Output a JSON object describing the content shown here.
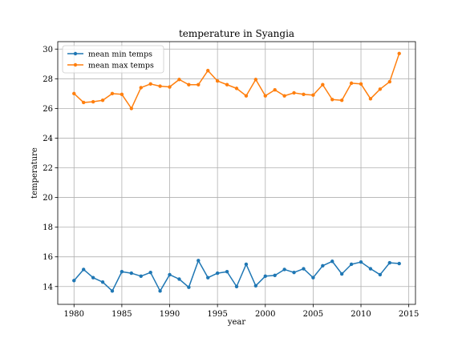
{
  "chart_data": {
    "type": "line",
    "title": "temperature in Syangia",
    "xlabel": "year",
    "ylabel": "temperature",
    "xlim": [
      1978.3,
      2015.7
    ],
    "ylim": [
      12.8,
      30.5
    ],
    "xticks": [
      1980,
      1985,
      1990,
      1995,
      2000,
      2005,
      2010,
      2015
    ],
    "yticks": [
      14,
      16,
      18,
      20,
      22,
      24,
      26,
      28,
      30
    ],
    "grid": true,
    "legend_position": "upper left",
    "x": [
      1980,
      1981,
      1982,
      1983,
      1984,
      1985,
      1986,
      1987,
      1988,
      1989,
      1990,
      1991,
      1992,
      1993,
      1994,
      1995,
      1996,
      1997,
      1998,
      1999,
      2000,
      2001,
      2002,
      2003,
      2004,
      2005,
      2006,
      2007,
      2008,
      2009,
      2010,
      2011,
      2012,
      2013,
      2014
    ],
    "series": [
      {
        "name": "mean min temps",
        "color": "#1f77b4",
        "values": [
          14.4,
          15.15,
          14.6,
          14.3,
          13.7,
          15.0,
          14.9,
          14.7,
          14.95,
          13.7,
          14.8,
          14.5,
          13.95,
          15.75,
          14.6,
          14.9,
          15.0,
          14.0,
          15.5,
          14.05,
          14.7,
          14.75,
          15.15,
          14.95,
          15.2,
          14.6,
          15.4,
          15.7,
          14.85,
          15.5,
          15.65,
          15.2,
          14.8,
          15.6,
          15.55
        ]
      },
      {
        "name": "mean max temps",
        "color": "#ff7f0e",
        "values": [
          27.0,
          26.4,
          26.45,
          26.55,
          27.0,
          26.95,
          26.0,
          27.4,
          27.65,
          27.5,
          27.45,
          27.95,
          27.6,
          27.6,
          28.55,
          27.85,
          27.6,
          27.35,
          26.85,
          27.95,
          26.85,
          27.25,
          26.85,
          27.05,
          26.95,
          26.9,
          27.6,
          26.6,
          26.55,
          27.7,
          27.65,
          26.65,
          27.3,
          27.8,
          29.7
        ]
      }
    ]
  }
}
